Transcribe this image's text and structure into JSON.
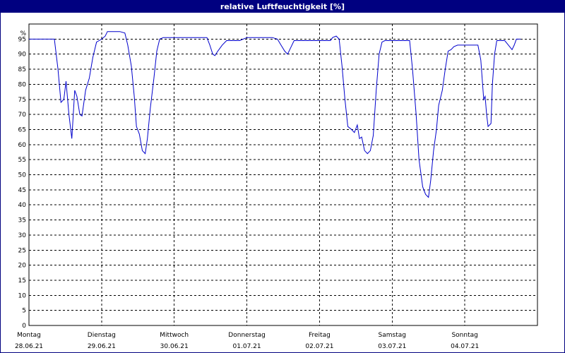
{
  "chart_data": {
    "type": "line",
    "title": "relative Luftfeuchtigkeit [%]",
    "yunit": "%",
    "ylim": [
      0,
      100
    ],
    "yticks": [
      0,
      5,
      10,
      15,
      20,
      25,
      30,
      35,
      40,
      45,
      50,
      55,
      60,
      65,
      70,
      75,
      80,
      85,
      90,
      95
    ],
    "xlim": [
      0,
      7
    ],
    "grid": true,
    "days": [
      {
        "weekday": "Montag",
        "date": "28.06.21"
      },
      {
        "weekday": "Dienstag",
        "date": "29.06.21"
      },
      {
        "weekday": "Mittwoch",
        "date": "30.06.21"
      },
      {
        "weekday": "Donnerstag",
        "date": "01.07.21"
      },
      {
        "weekday": "Freitag",
        "date": "02.07.21"
      },
      {
        "weekday": "Samstag",
        "date": "03.07.21"
      },
      {
        "weekday": "Sonntag",
        "date": "04.07.21"
      }
    ],
    "series": [
      {
        "color": "#0000cc",
        "points": [
          [
            0.0,
            95
          ],
          [
            0.35,
            95
          ],
          [
            0.4,
            85
          ],
          [
            0.44,
            74
          ],
          [
            0.48,
            75
          ],
          [
            0.51,
            81
          ],
          [
            0.55,
            70
          ],
          [
            0.59,
            62
          ],
          [
            0.63,
            78
          ],
          [
            0.66,
            76
          ],
          [
            0.7,
            70
          ],
          [
            0.73,
            69.5
          ],
          [
            0.78,
            78
          ],
          [
            0.83,
            82
          ],
          [
            0.88,
            89
          ],
          [
            0.93,
            94
          ],
          [
            1.0,
            95
          ],
          [
            1.05,
            96
          ],
          [
            1.08,
            97.5
          ],
          [
            1.15,
            97.5
          ],
          [
            1.25,
            97.5
          ],
          [
            1.32,
            97
          ],
          [
            1.36,
            93
          ],
          [
            1.41,
            86
          ],
          [
            1.45,
            76
          ],
          [
            1.48,
            66
          ],
          [
            1.52,
            63.5
          ],
          [
            1.56,
            58
          ],
          [
            1.6,
            57
          ],
          [
            1.63,
            62
          ],
          [
            1.67,
            72
          ],
          [
            1.72,
            82
          ],
          [
            1.76,
            91
          ],
          [
            1.8,
            95
          ],
          [
            1.85,
            95.5
          ],
          [
            2.0,
            95.5
          ],
          [
            2.3,
            95.5
          ],
          [
            2.45,
            95.5
          ],
          [
            2.49,
            93
          ],
          [
            2.53,
            90
          ],
          [
            2.56,
            89.5
          ],
          [
            2.6,
            91
          ],
          [
            2.66,
            93
          ],
          [
            2.72,
            94.5
          ],
          [
            2.8,
            94.5
          ],
          [
            2.9,
            94.5
          ],
          [
            3.0,
            95.5
          ],
          [
            3.15,
            95.5
          ],
          [
            3.35,
            95.5
          ],
          [
            3.42,
            95
          ],
          [
            3.47,
            93
          ],
          [
            3.52,
            91
          ],
          [
            3.56,
            90
          ],
          [
            3.6,
            92
          ],
          [
            3.65,
            94.5
          ],
          [
            3.8,
            94.5
          ],
          [
            4.0,
            94.5
          ],
          [
            4.15,
            94.5
          ],
          [
            4.18,
            95.5
          ],
          [
            4.23,
            96
          ],
          [
            4.27,
            95
          ],
          [
            4.31,
            86
          ],
          [
            4.35,
            75
          ],
          [
            4.39,
            66
          ],
          [
            4.44,
            65
          ],
          [
            4.48,
            64
          ],
          [
            4.52,
            66.5
          ],
          [
            4.55,
            62
          ],
          [
            4.58,
            62.5
          ],
          [
            4.62,
            58
          ],
          [
            4.66,
            57
          ],
          [
            4.7,
            58
          ],
          [
            4.74,
            63
          ],
          [
            4.78,
            78
          ],
          [
            4.82,
            90
          ],
          [
            4.86,
            94
          ],
          [
            4.9,
            94.5
          ],
          [
            5.0,
            94.5
          ],
          [
            5.15,
            94.5
          ],
          [
            5.24,
            94.5
          ],
          [
            5.28,
            85
          ],
          [
            5.33,
            70
          ],
          [
            5.37,
            55
          ],
          [
            5.42,
            46
          ],
          [
            5.46,
            43.5
          ],
          [
            5.5,
            42.5
          ],
          [
            5.53,
            48
          ],
          [
            5.57,
            58
          ],
          [
            5.61,
            65
          ],
          [
            5.64,
            73
          ],
          [
            5.69,
            78
          ],
          [
            5.73,
            85
          ],
          [
            5.77,
            91
          ],
          [
            5.81,
            91.5
          ],
          [
            5.85,
            92.5
          ],
          [
            5.9,
            93
          ],
          [
            6.0,
            93
          ],
          [
            6.1,
            93
          ],
          [
            6.18,
            93
          ],
          [
            6.22,
            88
          ],
          [
            6.26,
            75
          ],
          [
            6.28,
            76
          ],
          [
            6.3,
            70
          ],
          [
            6.32,
            66
          ],
          [
            6.36,
            67
          ],
          [
            6.38,
            80
          ],
          [
            6.41,
            90
          ],
          [
            6.44,
            94.5
          ],
          [
            6.55,
            94.5
          ],
          [
            6.6,
            93
          ],
          [
            6.65,
            91.5
          ],
          [
            6.68,
            93
          ],
          [
            6.71,
            95
          ],
          [
            6.77,
            95
          ]
        ]
      }
    ]
  }
}
